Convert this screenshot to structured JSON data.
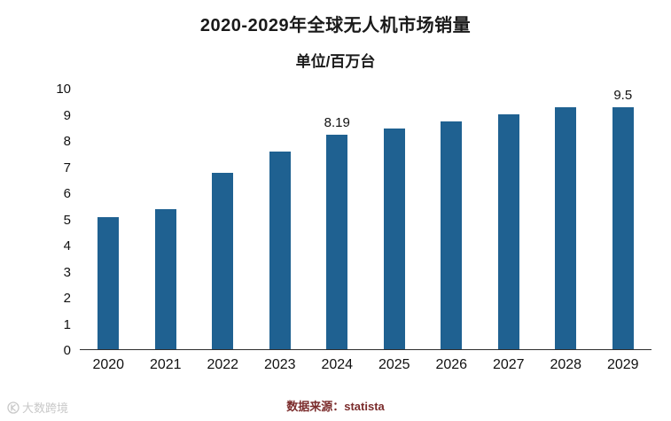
{
  "page": {
    "title": "2020-2029年全球无人机市场销量",
    "subtitle": "单位/百万台",
    "source_text": "数据来源：statista",
    "watermark_text": "大数跨境"
  },
  "chart_data": {
    "type": "bar",
    "title": "2020-2029年全球无人机市场销量",
    "subtitle": "单位/百万台",
    "categories": [
      "2020",
      "2021",
      "2022",
      "2023",
      "2024",
      "2025",
      "2026",
      "2027",
      "2028",
      "2029"
    ],
    "values": [
      5.05,
      5.35,
      6.75,
      7.55,
      8.19,
      8.45,
      8.7,
      9.0,
      9.25,
      9.5
    ],
    "point_labels": [
      "",
      "",
      "",
      "",
      "8.19",
      "",
      "",
      "",
      "",
      "9.5"
    ],
    "xlabel": "",
    "ylabel": "",
    "ylim": [
      0,
      10
    ],
    "yticks": [
      0,
      1,
      2,
      3,
      4,
      5,
      6,
      7,
      8,
      9,
      10
    ],
    "grid": false,
    "legend": "none",
    "bar_color": "#1f6191",
    "source": "数据来源：statista"
  }
}
